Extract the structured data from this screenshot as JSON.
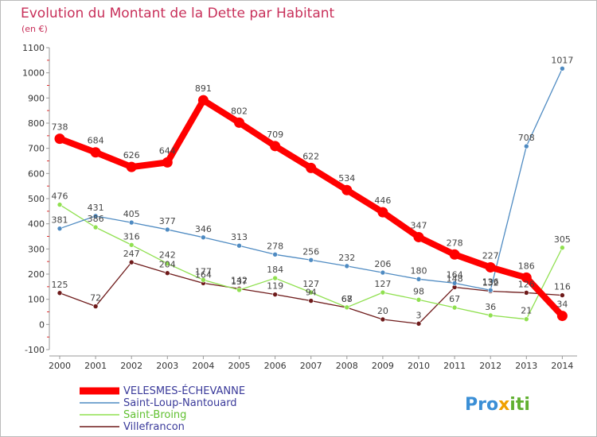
{
  "header": {
    "title": "Evolution du Montant de la Dette par Habitant",
    "unit": "(en €)"
  },
  "logo": {
    "parts": [
      "Pro",
      "x",
      "iti"
    ],
    "colors": [
      "#3b8fd6",
      "#f0a000",
      "#60b030"
    ]
  },
  "chart_data": {
    "type": "line",
    "title": "Evolution du Montant de la Dette par Habitant",
    "subtitle": "(en €)",
    "xlabel": "",
    "ylabel": "",
    "ylim": [
      -100,
      1100
    ],
    "yticks": [
      -100,
      0,
      100,
      200,
      300,
      400,
      500,
      600,
      700,
      800,
      900,
      1000,
      1100
    ],
    "x": [
      "2000",
      "2001",
      "2002",
      "2003",
      "2004",
      "2005",
      "2006",
      "2007",
      "2008",
      "2009",
      "2010",
      "2011",
      "2012",
      "2013",
      "2014"
    ],
    "grid": false,
    "legend": "bottom-left",
    "series": [
      {
        "name": "VELESMES-ÉCHEVANNE",
        "color": "#ff0000",
        "values": [
          738,
          684,
          626,
          644,
          891,
          802,
          709,
          622,
          534,
          446,
          347,
          278,
          227,
          186,
          34
        ]
      },
      {
        "name": "Saint-Loup-Nantouard",
        "color": "#4f8bc2",
        "values": [
          381,
          431,
          405,
          377,
          346,
          313,
          278,
          256,
          232,
          206,
          180,
          164,
          136,
          708,
          1017
        ]
      },
      {
        "name": "Saint-Broing",
        "color": "#90e050",
        "values": [
          476,
          386,
          316,
          242,
          177,
          137,
          184,
          127,
          68,
          127,
          98,
          67,
          36,
          21,
          305
        ]
      },
      {
        "name": "Villefrancon",
        "color": "#6e1a1a",
        "values": [
          125,
          72,
          247,
          204,
          164,
          142,
          119,
          94,
          67,
          20,
          3,
          148,
          132,
          126,
          116
        ]
      }
    ]
  }
}
